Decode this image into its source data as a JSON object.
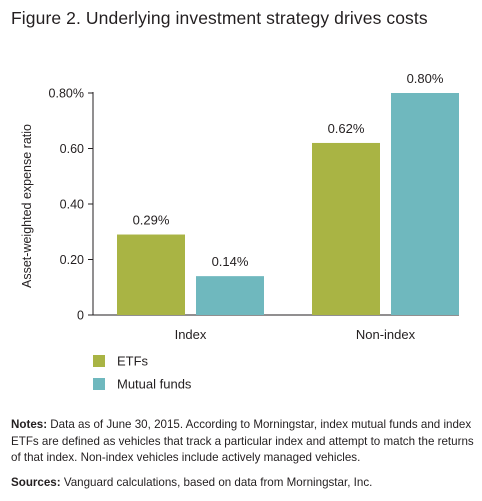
{
  "figure_title": "Figure 2. Underlying investment strategy drives costs",
  "colors": {
    "etfs": "#A9B444",
    "mutual_funds": "#6FB8BE",
    "axis": "#231f20"
  },
  "chart_data": {
    "type": "bar",
    "title": "Figure 2. Underlying investment strategy drives costs",
    "ylabel": "Asset-weighted expense ratio",
    "xlabel": "",
    "categories": [
      "Index",
      "Non-index"
    ],
    "series": [
      {
        "name": "ETFs",
        "values": [
          0.29,
          0.62
        ],
        "labels": [
          "0.29%",
          "0.62%"
        ],
        "color": "#A9B444"
      },
      {
        "name": "Mutual funds",
        "values": [
          0.14,
          0.8
        ],
        "labels": [
          "0.14%",
          "0.80%"
        ],
        "color": "#6FB8BE"
      }
    ],
    "ylim": [
      0,
      0.8
    ],
    "yticks": [
      0,
      0.2,
      0.4,
      0.6,
      0.8
    ],
    "ytick_labels": [
      "0",
      "0.20",
      "0.40",
      "0.60",
      "0.80%"
    ],
    "grid": false,
    "legend_position": "bottom-left"
  },
  "notes": {
    "label": "Notes:",
    "text": " Data as of June 30, 2015. According to Morningstar, index mutual funds and index ETFs are defined as vehicles that track a particular index and attempt to match the returns of that index. Non-index vehicles include actively managed vehicles."
  },
  "sources": {
    "label": "Sources:",
    "text": " Vanguard calculations, based on data from Morningstar, Inc."
  }
}
